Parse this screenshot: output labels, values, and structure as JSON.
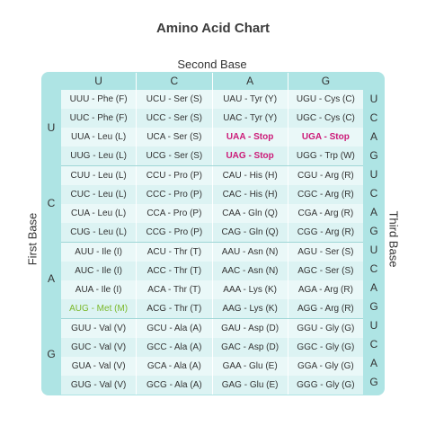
{
  "title": "Amino Acid Chart",
  "second_base_label": "Second Base",
  "first_base_label": "First Base",
  "third_base_label": "Third Base",
  "second_bases": [
    "U",
    "C",
    "A",
    "G"
  ],
  "first_bases": [
    "U",
    "C",
    "A",
    "G"
  ],
  "third_bases": [
    "U",
    "C",
    "A",
    "G"
  ],
  "colors": {
    "stop": "#cc1a78",
    "start": "#7ab82a",
    "frame": "#aee4e4"
  },
  "blocks": [
    [
      [
        "UUU - Phe (F)",
        "UUC - Phe (F)",
        "UUA - Leu (L)",
        "UUG - Leu (L)"
      ],
      [
        "UCU - Ser (S)",
        "UCC - Ser (S)",
        "UCA - Ser (S)",
        "UCG - Ser (S)"
      ],
      [
        "UAU - Tyr (Y)",
        "UAC - Tyr (Y)",
        "UAA - Stop",
        "UAG - Stop"
      ],
      [
        "UGU - Cys (C)",
        "UGC - Cys (C)",
        "UGA - Stop",
        "UGG - Trp (W)"
      ]
    ],
    [
      [
        "CUU - Leu (L)",
        "CUC - Leu (L)",
        "CUA - Leu (L)",
        "CUG - Leu (L)"
      ],
      [
        "CCU - Pro (P)",
        "CCC - Pro (P)",
        "CCA - Pro (P)",
        "CCG - Pro (P)"
      ],
      [
        "CAU - His (H)",
        "CAC - His (H)",
        "CAA - Gln (Q)",
        "CAG - Gln (Q)"
      ],
      [
        "CGU - Arg (R)",
        "CGC - Arg (R)",
        "CGA - Arg (R)",
        "CGG - Arg (R)"
      ]
    ],
    [
      [
        "AUU - Ile (I)",
        "AUC - Ile (I)",
        "AUA - Ile (I)",
        "AUG - Met (M)"
      ],
      [
        "ACU - Thr (T)",
        "ACC - Thr (T)",
        "ACA - Thr (T)",
        "ACG - Thr (T)"
      ],
      [
        "AAU - Asn (N)",
        "AAC - Asn (N)",
        "AAA - Lys (K)",
        "AAG - Lys (K)"
      ],
      [
        "AGU - Ser (S)",
        "AGC - Ser (S)",
        "AGA - Arg (R)",
        "AGG - Arg (R)"
      ]
    ],
    [
      [
        "GUU - Val (V)",
        "GUC - Val (V)",
        "GUA - Val (V)",
        "GUG - Val (V)"
      ],
      [
        "GCU - Ala (A)",
        "GCC - Ala (A)",
        "GCA - Ala (A)",
        "GCG - Ala (A)"
      ],
      [
        "GAU - Asp (D)",
        "GAC - Asp (D)",
        "GAA - Glu (E)",
        "GAG - Glu (E)"
      ],
      [
        "GGU - Gly (G)",
        "GGC - Gly (G)",
        "GGA - Gly (G)",
        "GGG - Gly (G)"
      ]
    ]
  ]
}
